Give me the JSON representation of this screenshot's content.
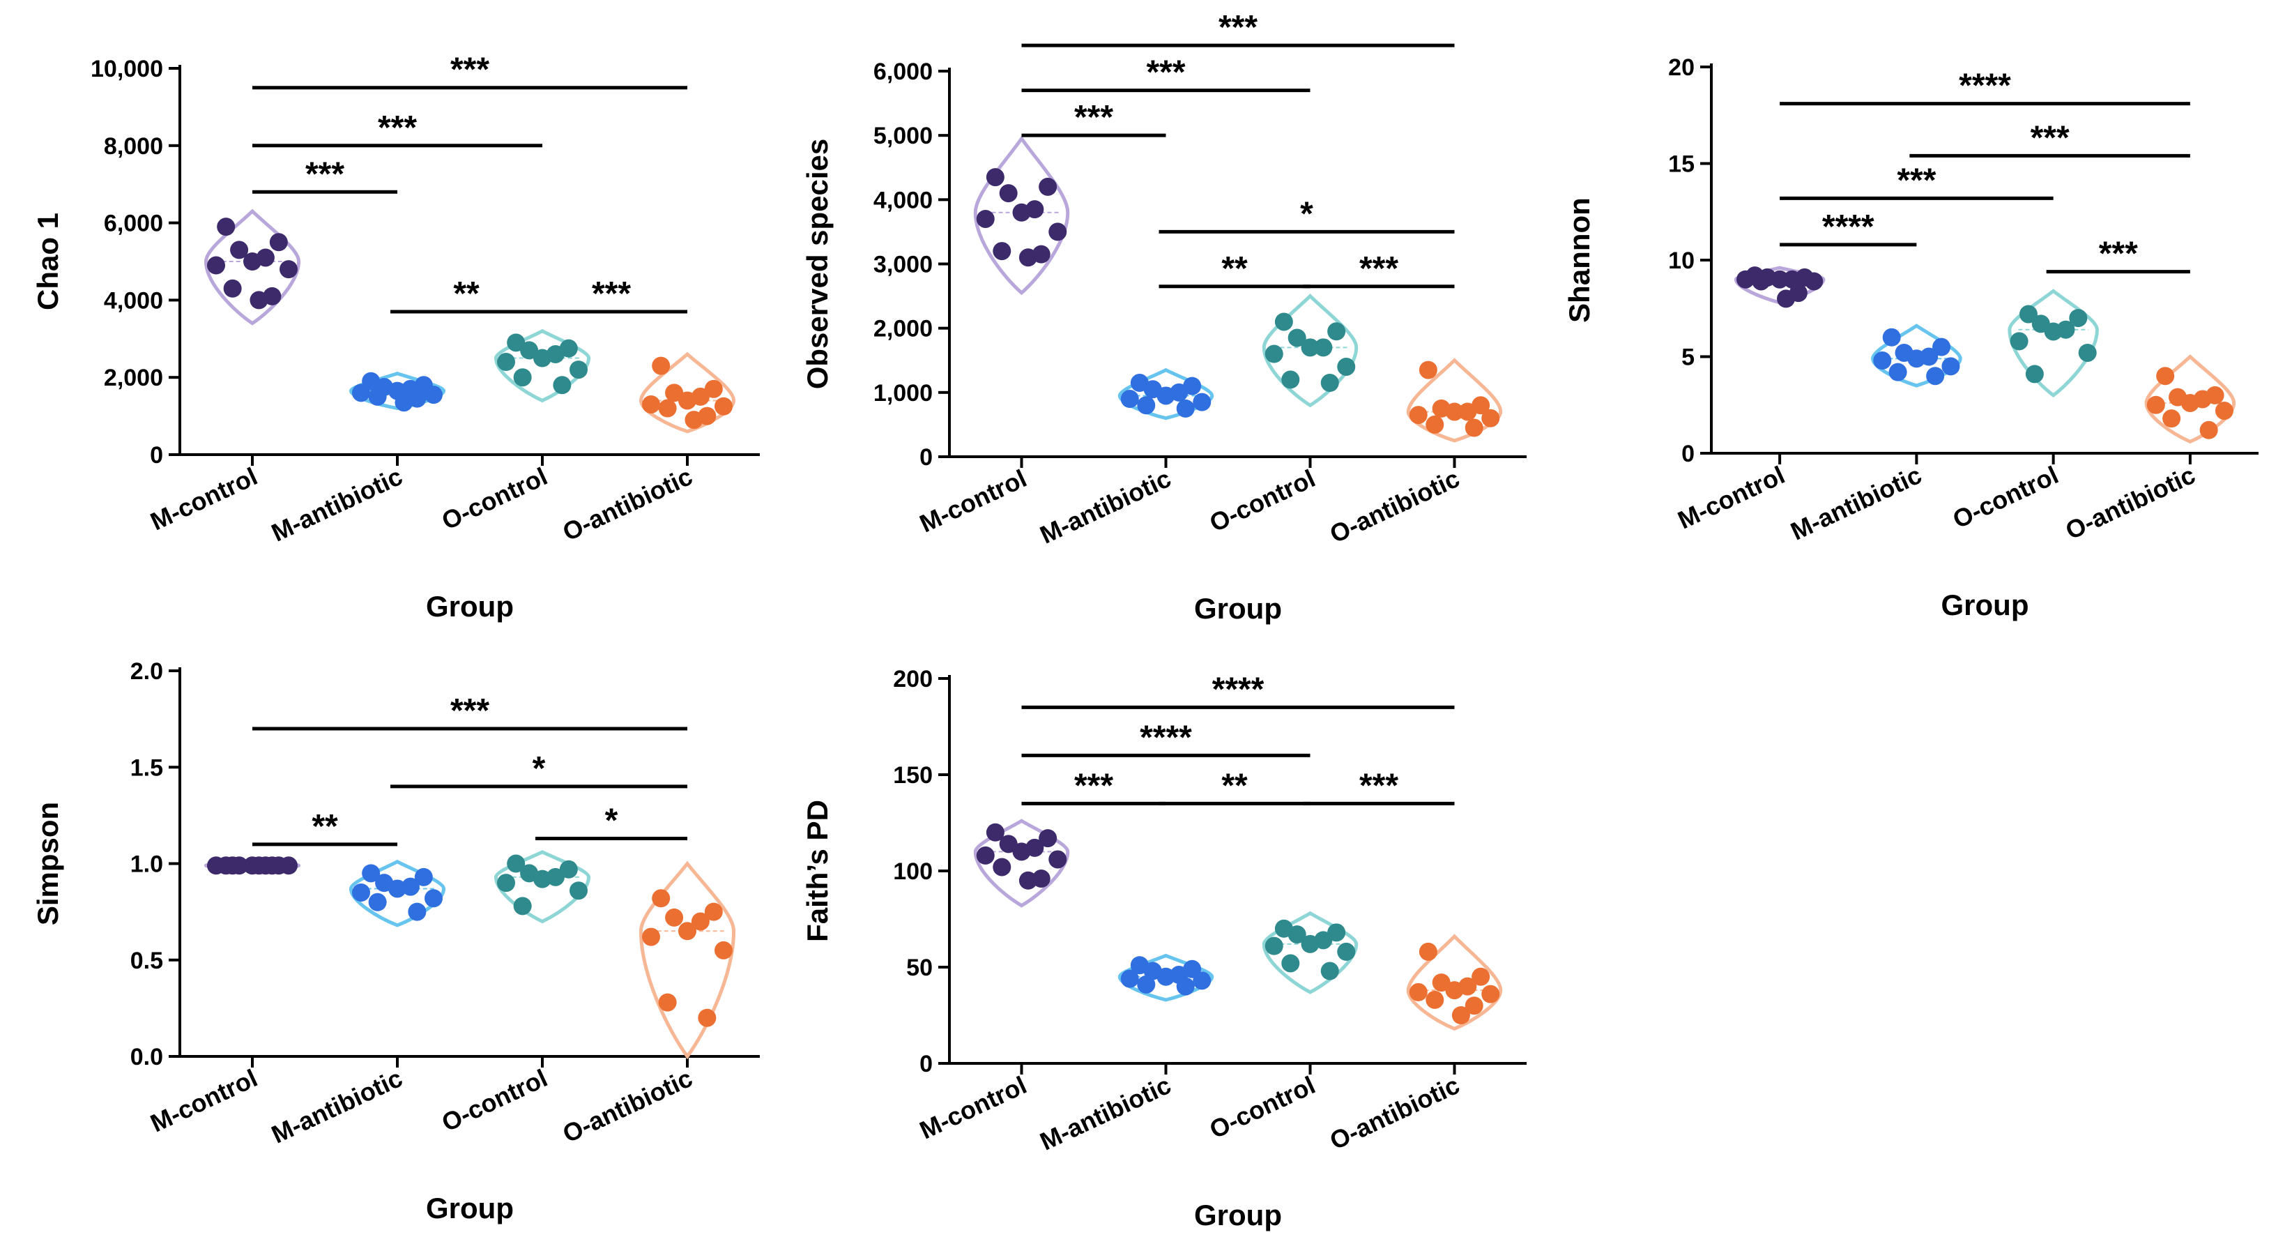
{
  "figure": {
    "xlabel": "Group",
    "categories": [
      "M-control",
      "M-antibiotic",
      "O-control",
      "O-antibiotic"
    ],
    "colors": {
      "M-control": {
        "point": "#3d2a6b",
        "violin": "#b9a7dc"
      },
      "M-antibiotic": {
        "point": "#2f6fe0",
        "violin": "#67c4ee"
      },
      "O-control": {
        "point": "#2e8a8c",
        "violin": "#8ed6d6"
      },
      "O-antibiotic": {
        "point": "#ec6f32",
        "violin": "#f7b694"
      }
    }
  },
  "chart_data": [
    {
      "id": "chao1",
      "type": "scatter",
      "title": "",
      "ylabel": "Chao 1",
      "xlabel": "Group",
      "ylim": [
        0,
        10000
      ],
      "yticks": [
        0,
        2000,
        4000,
        6000,
        8000,
        10000
      ],
      "ytick_labels": [
        "0",
        "2,000",
        "4,000",
        "6,000",
        "8,000",
        "10,000"
      ],
      "categories": [
        "M-control",
        "M-antibiotic",
        "O-control",
        "O-antibiotic"
      ],
      "series": [
        {
          "name": "M-control",
          "values": [
            5900,
            5500,
            5300,
            5100,
            5000,
            4900,
            4800,
            4300,
            4100,
            4000
          ]
        },
        {
          "name": "M-antibiotic",
          "values": [
            1900,
            1800,
            1750,
            1700,
            1650,
            1600,
            1550,
            1500,
            1450,
            1350
          ]
        },
        {
          "name": "O-control",
          "values": [
            2900,
            2750,
            2700,
            2600,
            2500,
            2400,
            2200,
            2000,
            1800
          ]
        },
        {
          "name": "O-antibiotic",
          "values": [
            2300,
            1700,
            1600,
            1500,
            1400,
            1300,
            1250,
            1200,
            1000,
            900
          ]
        }
      ],
      "violin_range": [
        [
          3400,
          6300
        ],
        [
          1200,
          2100
        ],
        [
          1400,
          3200
        ],
        [
          600,
          2600
        ]
      ],
      "significance": [
        {
          "from": 0,
          "to": 1,
          "y": 6800,
          "label": "***"
        },
        {
          "from": 0,
          "to": 2,
          "y": 8000,
          "label": "***"
        },
        {
          "from": 0,
          "to": 3,
          "y": 9500,
          "label": "***"
        },
        {
          "from": 1,
          "to": 2,
          "y": 3700,
          "label": "**"
        },
        {
          "from": 2,
          "to": 3,
          "y": 3700,
          "label": "***"
        }
      ]
    },
    {
      "id": "observed",
      "type": "scatter",
      "title": "",
      "ylabel": "Observed species",
      "xlabel": "Group",
      "ylim": [
        0,
        6000
      ],
      "yticks": [
        0,
        1000,
        2000,
        3000,
        4000,
        5000,
        6000
      ],
      "ytick_labels": [
        "0",
        "1,000",
        "2,000",
        "3,000",
        "4,000",
        "5,000",
        "6,000"
      ],
      "categories": [
        "M-control",
        "M-antibiotic",
        "O-control",
        "O-antibiotic"
      ],
      "series": [
        {
          "name": "M-control",
          "values": [
            4350,
            4200,
            4100,
            3850,
            3800,
            3700,
            3500,
            3200,
            3150,
            3100
          ]
        },
        {
          "name": "M-antibiotic",
          "values": [
            1150,
            1100,
            1050,
            1000,
            950,
            900,
            850,
            800,
            750
          ]
        },
        {
          "name": "O-control",
          "values": [
            2100,
            1950,
            1850,
            1700,
            1700,
            1600,
            1400,
            1200,
            1150
          ]
        },
        {
          "name": "O-antibiotic",
          "values": [
            1350,
            800,
            750,
            700,
            700,
            650,
            600,
            500,
            450
          ]
        }
      ],
      "violin_range": [
        [
          2550,
          4950
        ],
        [
          600,
          1350
        ],
        [
          800,
          2500
        ],
        [
          250,
          1500
        ]
      ],
      "significance": [
        {
          "from": 0,
          "to": 1,
          "y": 5000,
          "label": "***"
        },
        {
          "from": 0,
          "to": 2,
          "y": 5700,
          "label": "***"
        },
        {
          "from": 0,
          "to": 3,
          "y": 6400,
          "label": "***"
        },
        {
          "from": 1,
          "to": 3,
          "y": 3500,
          "label": "*"
        },
        {
          "from": 1,
          "to": 2,
          "y": 2650,
          "label": "**"
        },
        {
          "from": 2,
          "to": 3,
          "y": 2650,
          "label": "***"
        }
      ]
    },
    {
      "id": "shannon",
      "type": "scatter",
      "title": "",
      "ylabel": "Shannon",
      "xlabel": "Group",
      "ylim": [
        0,
        20
      ],
      "yticks": [
        0,
        5,
        10,
        15,
        20
      ],
      "ytick_labels": [
        "0",
        "5",
        "10",
        "15",
        "20"
      ],
      "categories": [
        "M-control",
        "M-antibiotic",
        "O-control",
        "O-antibiotic"
      ],
      "series": [
        {
          "name": "M-control",
          "values": [
            9.2,
            9.1,
            9.1,
            9.0,
            9.0,
            9.0,
            8.9,
            8.9,
            8.3,
            8.0
          ]
        },
        {
          "name": "M-antibiotic",
          "values": [
            6.0,
            5.5,
            5.2,
            5.0,
            4.9,
            4.8,
            4.5,
            4.2,
            4.0
          ]
        },
        {
          "name": "O-control",
          "values": [
            7.2,
            7.0,
            6.7,
            6.4,
            6.3,
            5.8,
            5.2,
            4.1
          ]
        },
        {
          "name": "O-antibiotic",
          "values": [
            4.0,
            3.0,
            2.9,
            2.8,
            2.6,
            2.5,
            2.2,
            1.8,
            1.2
          ]
        }
      ],
      "violin_range": [
        [
          7.8,
          9.6
        ],
        [
          3.5,
          6.6
        ],
        [
          3.0,
          8.4
        ],
        [
          0.6,
          5.0
        ]
      ],
      "significance": [
        {
          "from": 0,
          "to": 1,
          "y": 10.8,
          "label": "****"
        },
        {
          "from": 0,
          "to": 2,
          "y": 13.2,
          "label": "***"
        },
        {
          "from": 1,
          "to": 3,
          "y": 15.4,
          "label": "***"
        },
        {
          "from": 0,
          "to": 3,
          "y": 18.1,
          "label": "****"
        },
        {
          "from": 2,
          "to": 3,
          "y": 9.4,
          "label": "***"
        }
      ]
    },
    {
      "id": "simpson",
      "type": "scatter",
      "title": "",
      "ylabel": "Simpson",
      "xlabel": "Group",
      "ylim": [
        0.0,
        2.0
      ],
      "yticks": [
        0.0,
        0.5,
        1.0,
        1.5,
        2.0
      ],
      "ytick_labels": [
        "0.0",
        "0.5",
        "1.0",
        "1.5",
        "2.0"
      ],
      "categories": [
        "M-control",
        "M-antibiotic",
        "O-control",
        "O-antibiotic"
      ],
      "series": [
        {
          "name": "M-control",
          "values": [
            0.99,
            0.99,
            0.99,
            0.99,
            0.99,
            0.99,
            0.99,
            0.99,
            0.99,
            0.99
          ]
        },
        {
          "name": "M-antibiotic",
          "values": [
            0.95,
            0.93,
            0.9,
            0.88,
            0.87,
            0.85,
            0.82,
            0.8,
            0.75
          ]
        },
        {
          "name": "O-control",
          "values": [
            1.0,
            0.97,
            0.95,
            0.93,
            0.92,
            0.9,
            0.86,
            0.78
          ]
        },
        {
          "name": "O-antibiotic",
          "values": [
            0.82,
            0.75,
            0.72,
            0.7,
            0.65,
            0.62,
            0.55,
            0.28,
            0.2
          ]
        }
      ],
      "violin_range": [
        [
          0.97,
          1.01
        ],
        [
          0.68,
          1.01
        ],
        [
          0.7,
          1.06
        ],
        [
          0.0,
          1.0
        ]
      ],
      "significance": [
        {
          "from": 0,
          "to": 1,
          "y": 1.1,
          "label": "**"
        },
        {
          "from": 1,
          "to": 3,
          "y": 1.4,
          "label": "*"
        },
        {
          "from": 0,
          "to": 3,
          "y": 1.7,
          "label": "***"
        },
        {
          "from": 2,
          "to": 3,
          "y": 1.13,
          "label": "*"
        }
      ]
    },
    {
      "id": "faith",
      "type": "scatter",
      "title": "",
      "ylabel": "Faith’s PD",
      "xlabel": "Group",
      "ylim": [
        0,
        200
      ],
      "yticks": [
        0,
        50,
        100,
        150,
        200
      ],
      "ytick_labels": [
        "0",
        "50",
        "100",
        "150",
        "200"
      ],
      "categories": [
        "M-control",
        "M-antibiotic",
        "O-control",
        "O-antibiotic"
      ],
      "series": [
        {
          "name": "M-control",
          "values": [
            120,
            117,
            114,
            112,
            110,
            108,
            106,
            102,
            96,
            95
          ]
        },
        {
          "name": "M-antibiotic",
          "values": [
            51,
            49,
            48,
            46,
            45,
            44,
            43,
            41,
            40
          ]
        },
        {
          "name": "O-control",
          "values": [
            70,
            68,
            67,
            64,
            62,
            61,
            58,
            52,
            48
          ]
        },
        {
          "name": "O-antibiotic",
          "values": [
            58,
            45,
            42,
            40,
            38,
            37,
            36,
            33,
            30,
            25
          ]
        }
      ],
      "violin_range": [
        [
          82,
          126
        ],
        [
          33,
          56
        ],
        [
          37,
          78
        ],
        [
          18,
          66
        ]
      ],
      "significance": [
        {
          "from": 0,
          "to": 1,
          "y": 135,
          "label": "***"
        },
        {
          "from": 1,
          "to": 2,
          "y": 135,
          "label": "**"
        },
        {
          "from": 2,
          "to": 3,
          "y": 135,
          "label": "***"
        },
        {
          "from": 0,
          "to": 2,
          "y": 160,
          "label": "****"
        },
        {
          "from": 0,
          "to": 3,
          "y": 185,
          "label": "****"
        }
      ]
    }
  ]
}
